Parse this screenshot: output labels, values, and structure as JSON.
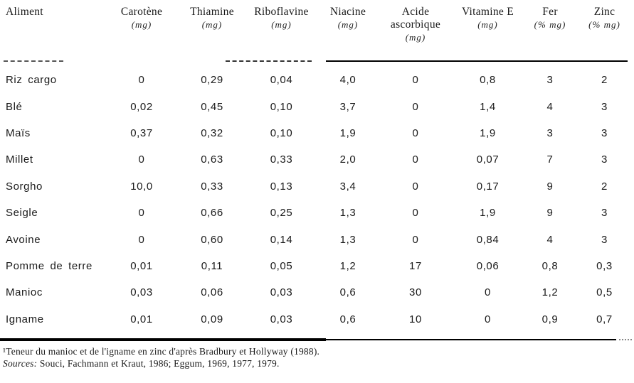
{
  "table": {
    "columns": [
      {
        "label": "Aliment",
        "unit": ""
      },
      {
        "label": "Carotène",
        "unit": "(mg)"
      },
      {
        "label": "Thiamine",
        "unit": "(mg)"
      },
      {
        "label": "Riboflavine",
        "unit": "(mg)"
      },
      {
        "label": "Niacine",
        "unit": "(mg)"
      },
      {
        "label": "Acide ascorbique",
        "unit": "(mg)"
      },
      {
        "label": "Vitamine E",
        "unit": "(mg)"
      },
      {
        "label": "Fer",
        "unit": "(% mg)"
      },
      {
        "label": "Zinc",
        "unit": "(% mg)"
      }
    ],
    "rows": [
      {
        "aliment": "Riz cargo",
        "values": [
          "0",
          "0,29",
          "0,04",
          "4,0",
          "0",
          "0,8",
          "3",
          "2"
        ]
      },
      {
        "aliment": "Blé",
        "values": [
          "0,02",
          "0,45",
          "0,10",
          "3,7",
          "0",
          "1,4",
          "4",
          "3"
        ]
      },
      {
        "aliment": "Maïs",
        "values": [
          "0,37",
          "0,32",
          "0,10",
          "1,9",
          "0",
          "1,9",
          "3",
          "3"
        ]
      },
      {
        "aliment": "Millet",
        "values": [
          "0",
          "0,63",
          "0,33",
          "2,0",
          "0",
          "0,07",
          "7",
          "3"
        ]
      },
      {
        "aliment": "Sorgho",
        "values": [
          "10,0",
          "0,33",
          "0,13",
          "3,4",
          "0",
          "0,17",
          "9",
          "2"
        ]
      },
      {
        "aliment": "Seigle",
        "values": [
          "0",
          "0,66",
          "0,25",
          "1,3",
          "0",
          "1,9",
          "9",
          "3"
        ]
      },
      {
        "aliment": "Avoine",
        "values": [
          "0",
          "0,60",
          "0,14",
          "1,3",
          "0",
          "0,84",
          "4",
          "3"
        ]
      },
      {
        "aliment": "Pomme de terre",
        "values": [
          "0,01",
          "0,11",
          "0,05",
          "1,2",
          "17",
          "0,06",
          "0,8",
          "0,3"
        ]
      },
      {
        "aliment": "Manioc",
        "values": [
          "0,03",
          "0,06",
          "0,03",
          "0,6",
          "30",
          "0",
          "1,2",
          "0,5"
        ]
      },
      {
        "aliment": "Igname",
        "values": [
          "0,01",
          "0,09",
          "0,03",
          "0,6",
          "10",
          "0",
          "0,9",
          "0,7"
        ]
      }
    ]
  },
  "footnotes": {
    "note1": "¹Teneur du manioc et de l'igname en zinc d'après Bradbury et Hollyway (1988).",
    "sources_label": "Sources:",
    "sources_text": " Souci, Fachmann et Kraut, 1986; Eggum, 1969, 1977, 1979."
  },
  "colors": {
    "ink": "#1a1a1a",
    "background": "#ffffff"
  }
}
